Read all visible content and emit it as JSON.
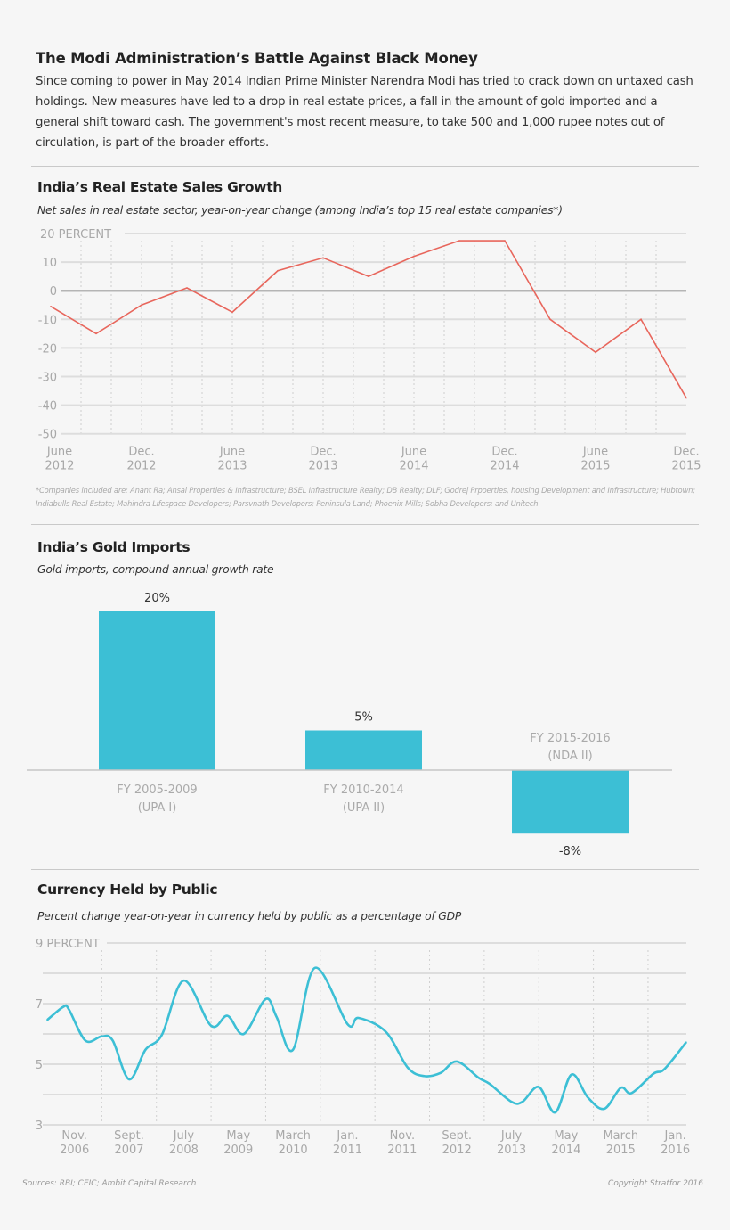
{
  "header": {
    "title": "The Modi Administration’s Battle Against Black Money",
    "intro": "Since coming to power in May 2014 Indian Prime Minister Narendra Modi has tried to crack down on untaxed cash holdings. New measures have led to a drop in real estate prices, a fall in the amount of gold imported and a general shift toward cash. The government's most recent measure, to take 500 and 1,000 rupee notes out of circulation, is part of the broader efforts."
  },
  "colors": {
    "real_estate_line": "#e8665c",
    "gold_bars": "#3cbfd5",
    "currency_line": "#3cbfd5",
    "zero_line": "#b5b5b5",
    "grid": "#dddddd"
  },
  "chart_data": [
    {
      "type": "line",
      "title": "India’s Real Estate Sales Growth",
      "subtitle": "Net sales in real estate sector, year-on-year change (among India’s top 15 real estate companies*)",
      "ylabel_unit": "PERCENT",
      "ylim": [
        -50,
        20
      ],
      "yticks": [
        20,
        10,
        0,
        -10,
        -20,
        -30,
        -40,
        -50
      ],
      "ytick_labels": [
        "20 PERCENT",
        "10",
        "0",
        "-10",
        "-20",
        "-30",
        "-40",
        "-50"
      ],
      "x": [
        "2012-06",
        "2012-09",
        "2012-12",
        "2013-03",
        "2013-06",
        "2013-09",
        "2013-12",
        "2014-03",
        "2014-06",
        "2014-09",
        "2014-12",
        "2015-03",
        "2015-06",
        "2015-09",
        "2015-12"
      ],
      "values": [
        -5.5,
        -15,
        -5,
        1,
        -7.5,
        7,
        11.5,
        5,
        12,
        17.5,
        17.5,
        -10,
        -21.5,
        -10,
        -37.5
      ],
      "xtick_labels": [
        [
          "June",
          "2012"
        ],
        [
          "Dec.",
          "2012"
        ],
        [
          "June",
          "2013"
        ],
        [
          "Dec.",
          "2013"
        ],
        [
          "June",
          "2014"
        ],
        [
          "Dec.",
          "2014"
        ],
        [
          "June",
          "2015"
        ],
        [
          "Dec.",
          "2015"
        ]
      ],
      "grid": true,
      "footnote": "*Companies included are: Anant Ra; Ansal Properties & Infrastructure; BSEL Infrastructure Realty; DB Realty; DLF; Godrej Prpoerties, housing Development and Infrastructure; Hubtown; Indiabulls Real Estate; Mahindra Lifespace Developers; Parsvnath Developers; Peninsula Land; Phoenix Mills; Sobha Developers; and Unitech"
    },
    {
      "type": "bar",
      "title": "India’s Gold Imports",
      "subtitle": "Gold imports, compound annual growth rate",
      "categories": [
        [
          "FY 2005-2009",
          "(UPA I)"
        ],
        [
          "FY 2010-2014",
          "(UPA II)"
        ],
        [
          "FY 2015-2016",
          "(NDA II)"
        ]
      ],
      "values": [
        20,
        5,
        -8
      ],
      "data_labels": [
        "20%",
        "5%",
        "-8%"
      ],
      "grid": false
    },
    {
      "type": "line",
      "title": "Currency Held by Public",
      "subtitle": "Percent change year-on-year in currency held by public as a percentage of GDP",
      "ylim": [
        3,
        9
      ],
      "yticks": [
        9,
        8,
        7,
        6,
        5,
        4,
        3
      ],
      "ytick_labels": [
        "9 PERCENT",
        "",
        "7",
        "",
        "5",
        "",
        "3"
      ],
      "x": [
        "2006-06",
        "2006-09",
        "2006-10",
        "2007-01",
        "2007-04",
        "2007-06",
        "2007-09",
        "2007-12",
        "2008-03",
        "2008-07",
        "2008-12",
        "2009-03",
        "2009-06",
        "2009-10",
        "2009-12",
        "2010-03",
        "2010-07",
        "2011-01",
        "2011-03",
        "2011-08",
        "2011-12",
        "2012-03",
        "2012-06",
        "2012-09",
        "2013-01",
        "2013-03",
        "2013-07",
        "2013-09",
        "2013-12",
        "2014-03",
        "2014-06",
        "2014-09",
        "2014-12",
        "2015-03",
        "2015-05",
        "2015-09",
        "2015-11",
        "2016-03"
      ],
      "values": [
        6.46,
        6.9,
        6.8,
        5.78,
        5.92,
        5.78,
        4.5,
        5.48,
        5.97,
        7.76,
        6.27,
        6.6,
        6.0,
        7.15,
        6.56,
        5.48,
        8.18,
        6.32,
        6.53,
        6.07,
        4.89,
        4.61,
        4.71,
        5.09,
        4.55,
        4.35,
        3.76,
        3.76,
        4.25,
        3.41,
        4.66,
        3.9,
        3.53,
        4.22,
        4.05,
        4.69,
        4.84,
        5.73
      ],
      "xtick_labels": [
        [
          "Nov.",
          "2006"
        ],
        [
          "Sept.",
          "2007"
        ],
        [
          "July",
          "2008"
        ],
        [
          "May",
          "2009"
        ],
        [
          "March",
          "2010"
        ],
        [
          "Jan.",
          "2011"
        ],
        [
          "Nov.",
          "2011"
        ],
        [
          "Sept.",
          "2012"
        ],
        [
          "July",
          "2013"
        ],
        [
          "May",
          "2014"
        ],
        [
          "March",
          "2015"
        ],
        [
          "Jan.",
          "2016"
        ]
      ],
      "xtick_dates": [
        "2006-11",
        "2007-09",
        "2008-07",
        "2009-05",
        "2010-03",
        "2011-01",
        "2011-11",
        "2012-09",
        "2013-07",
        "2014-05",
        "2015-03",
        "2016-01"
      ],
      "grid": true
    }
  ],
  "footer": {
    "sources": "Sources: RBI; CEIC; Ambit Capital Research",
    "copyright": "Copyright Stratfor 2016"
  }
}
